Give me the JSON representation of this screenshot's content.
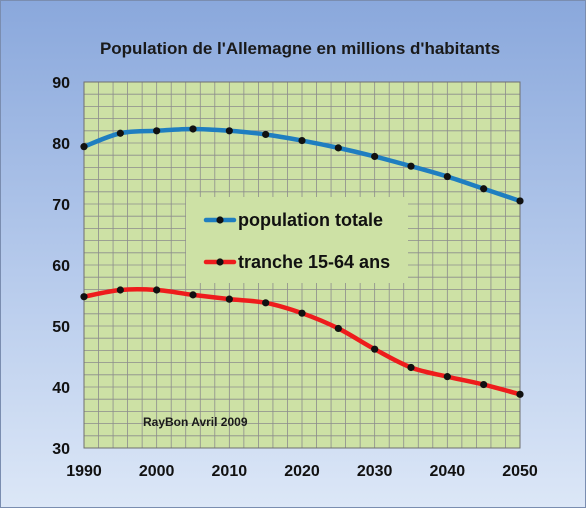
{
  "chart_data": {
    "type": "line",
    "title": "Population de l'Allemagne en millions d'habitants",
    "xlabel": "",
    "ylabel": "",
    "xlim": [
      1990,
      2050
    ],
    "ylim": [
      30,
      90
    ],
    "x_ticks": [
      "1990",
      "2000",
      "2010",
      "2020",
      "2030",
      "2040",
      "2050"
    ],
    "y_ticks": [
      "30",
      "40",
      "50",
      "60",
      "70",
      "80",
      "90"
    ],
    "x": [
      1990,
      1995,
      2000,
      2005,
      2010,
      2015,
      2020,
      2025,
      2030,
      2035,
      2040,
      2045,
      2050
    ],
    "series": [
      {
        "name": "population totale",
        "color": "#1f7ec0",
        "values": [
          79.4,
          81.6,
          82.0,
          82.3,
          82.0,
          81.4,
          80.4,
          79.2,
          77.8,
          76.2,
          74.5,
          72.5,
          70.5
        ]
      },
      {
        "name": "tranche 15-64 ans",
        "color": "#ee1c1c",
        "values": [
          54.8,
          55.9,
          55.9,
          55.1,
          54.4,
          53.8,
          52.1,
          49.6,
          46.2,
          43.2,
          41.7,
          40.4,
          38.8
        ]
      }
    ],
    "grid": true,
    "legend_position": "center",
    "annotation": "RayBon Avril 2009",
    "plot_background": "#cde1a5",
    "grid_color": "#8c8c8c"
  }
}
